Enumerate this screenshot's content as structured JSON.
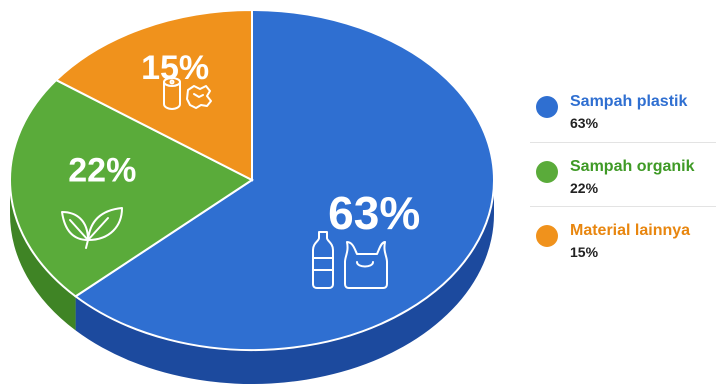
{
  "chart_data": {
    "type": "pie",
    "style": "3d",
    "slices": [
      {
        "label": "Sampah plastik",
        "value": 63,
        "value_label": "63%",
        "legend_value": "63%",
        "color": "#2f6fd1",
        "side_color": "#1c4a9e",
        "icon": "bottle-and-bag-icon"
      },
      {
        "label": "Sampah organik",
        "value": 22,
        "value_label": "22%",
        "legend_value": "22%",
        "color": "#5aab3a",
        "side_color": "#3f8425",
        "icon": "leaves-icon"
      },
      {
        "label": "Material lainnya",
        "value": 15,
        "value_label": "15%",
        "legend_value": "15%",
        "color": "#f0921c",
        "side_color": "#c47410",
        "icon": "roll-and-crumpled-paper-icon"
      }
    ],
    "legend_position": "right"
  }
}
